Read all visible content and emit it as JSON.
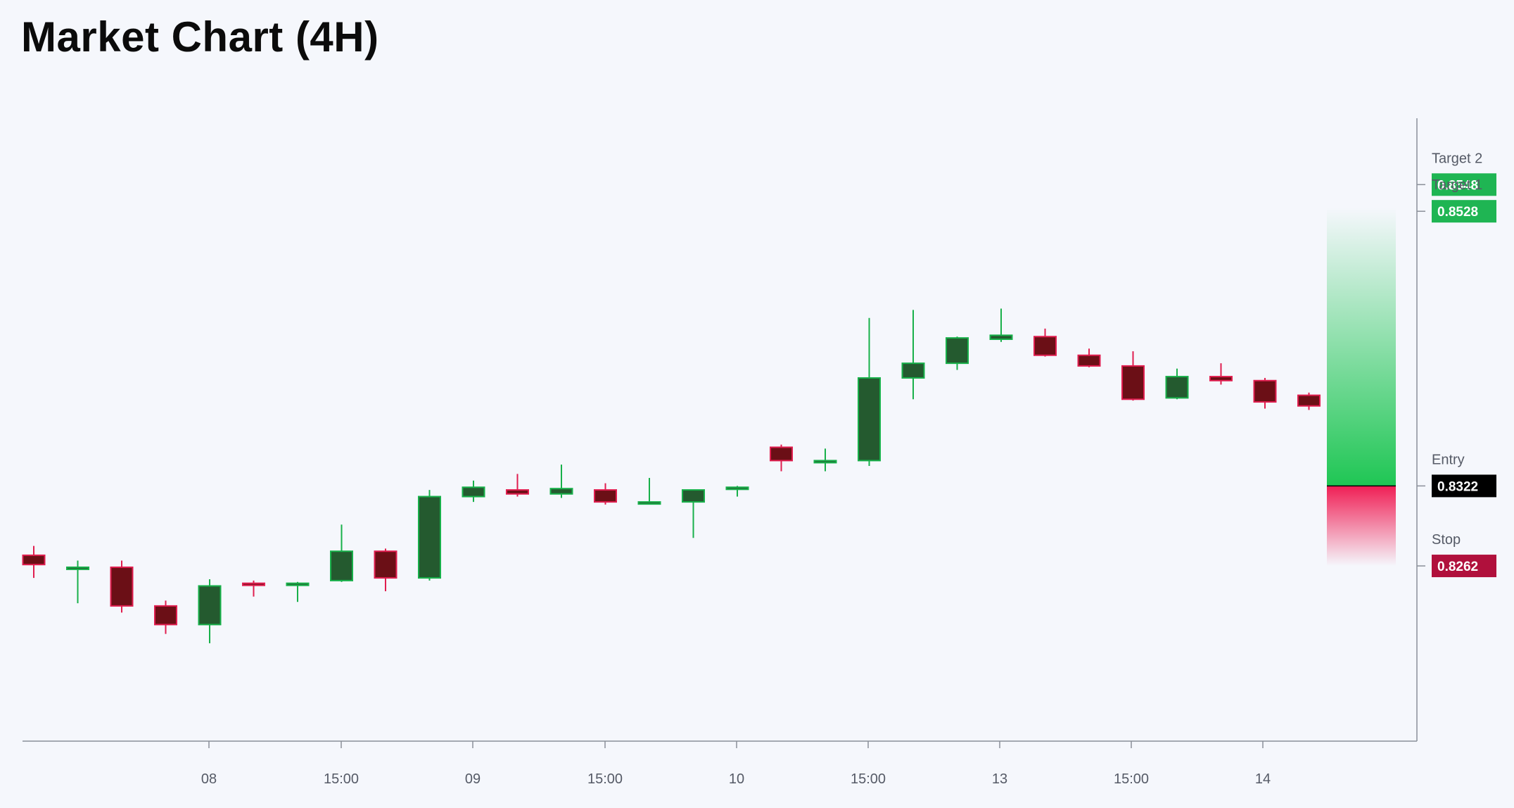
{
  "page_title": "Market Chart (4H)",
  "chart_data": {
    "type": "candlestick",
    "title": "Market Chart (4H)",
    "timeframe": "4H",
    "xlabel": "",
    "ylabel": "",
    "ylim": [
      0.8148,
      0.8602
    ],
    "grid": false,
    "x_tick_labels": [
      "08",
      "15:00",
      "09",
      "15:00",
      "10",
      "15:00",
      "13",
      "15:00",
      "14"
    ],
    "colors": {
      "up_body": "#245a2f",
      "up_border": "#18b04a",
      "down_body": "#6b0f16",
      "down_border": "#e01e4f",
      "target_badge": "#1fb553",
      "entry_badge": "#000000",
      "stop_badge": "#b0103c",
      "axis": "#8a8f99",
      "reward_zone": "#1fc654",
      "risk_zone": "#f01f55"
    },
    "candles": [
      {
        "o": 0.827,
        "h": 0.8277,
        "l": 0.8253,
        "c": 0.8263
      },
      {
        "o": 0.8261,
        "h": 0.8266,
        "l": 0.8234,
        "c": 0.8261
      },
      {
        "o": 0.8261,
        "h": 0.8266,
        "l": 0.8227,
        "c": 0.8232
      },
      {
        "o": 0.8232,
        "h": 0.8236,
        "l": 0.8211,
        "c": 0.8218
      },
      {
        "o": 0.8218,
        "h": 0.8252,
        "l": 0.8204,
        "c": 0.8247
      },
      {
        "o": 0.8249,
        "h": 0.8251,
        "l": 0.8239,
        "c": 0.8248
      },
      {
        "o": 0.8248,
        "h": 0.825,
        "l": 0.8235,
        "c": 0.8249
      },
      {
        "o": 0.8251,
        "h": 0.8293,
        "l": 0.825,
        "c": 0.8273
      },
      {
        "o": 0.8273,
        "h": 0.8275,
        "l": 0.8243,
        "c": 0.8253
      },
      {
        "o": 0.8253,
        "h": 0.8319,
        "l": 0.8251,
        "c": 0.8314
      },
      {
        "o": 0.8314,
        "h": 0.8326,
        "l": 0.831,
        "c": 0.8321
      },
      {
        "o": 0.8319,
        "h": 0.8331,
        "l": 0.8314,
        "c": 0.8316
      },
      {
        "o": 0.8316,
        "h": 0.8338,
        "l": 0.8313,
        "c": 0.832
      },
      {
        "o": 0.8319,
        "h": 0.8324,
        "l": 0.8308,
        "c": 0.831
      },
      {
        "o": 0.831,
        "h": 0.8328,
        "l": 0.8308,
        "c": 0.831
      },
      {
        "o": 0.831,
        "h": 0.8319,
        "l": 0.8283,
        "c": 0.8319
      },
      {
        "o": 0.832,
        "h": 0.8322,
        "l": 0.8314,
        "c": 0.8321
      },
      {
        "o": 0.8351,
        "h": 0.8353,
        "l": 0.8333,
        "c": 0.8341
      },
      {
        "o": 0.8341,
        "h": 0.835,
        "l": 0.8333,
        "c": 0.8341
      },
      {
        "o": 0.8341,
        "h": 0.8448,
        "l": 0.8337,
        "c": 0.8403
      },
      {
        "o": 0.8403,
        "h": 0.8454,
        "l": 0.8387,
        "c": 0.8414
      },
      {
        "o": 0.8414,
        "h": 0.8434,
        "l": 0.8409,
        "c": 0.8433
      },
      {
        "o": 0.8432,
        "h": 0.8455,
        "l": 0.843,
        "c": 0.8435
      },
      {
        "o": 0.8434,
        "h": 0.844,
        "l": 0.8419,
        "c": 0.842
      },
      {
        "o": 0.842,
        "h": 0.8425,
        "l": 0.8411,
        "c": 0.8412
      },
      {
        "o": 0.8412,
        "h": 0.8423,
        "l": 0.8386,
        "c": 0.8387
      },
      {
        "o": 0.8388,
        "h": 0.841,
        "l": 0.8387,
        "c": 0.8404
      },
      {
        "o": 0.8404,
        "h": 0.8414,
        "l": 0.8398,
        "c": 0.8401
      },
      {
        "o": 0.8401,
        "h": 0.8403,
        "l": 0.838,
        "c": 0.8385
      },
      {
        "o": 0.839,
        "h": 0.8392,
        "l": 0.8379,
        "c": 0.8382
      }
    ],
    "levels": [
      {
        "key": "target2",
        "name": "Target 2",
        "value": 0.8548,
        "label": "0.8548"
      },
      {
        "key": "target1",
        "name": "Target 1",
        "value": 0.8528,
        "label": "0.8528"
      },
      {
        "key": "entry",
        "name": "Entry",
        "value": 0.8322,
        "label": "0.8322"
      },
      {
        "key": "stop",
        "name": "Stop",
        "value": 0.8262,
        "label": "0.8262"
      }
    ]
  }
}
